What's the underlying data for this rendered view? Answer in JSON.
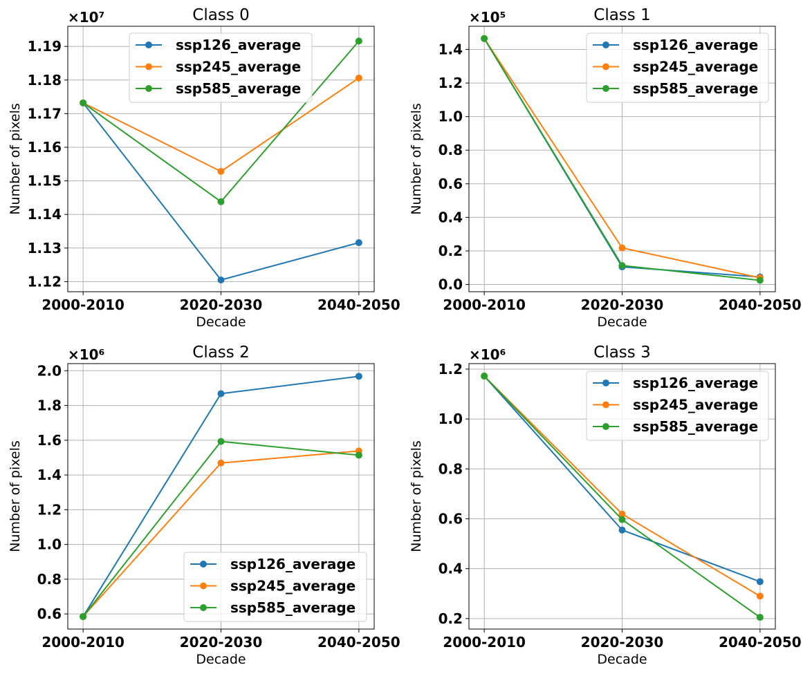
{
  "chart_data": [
    {
      "type": "line",
      "title": "Class 0",
      "xlabel": "Decade",
      "ylabel": "Number of pixels",
      "multiplier": "×10⁷",
      "categories": [
        "2000-2010",
        "2020-2030",
        "2040-2050"
      ],
      "ylim": [
        1.117,
        1.196
      ],
      "yticks": [
        1.12,
        1.13,
        1.14,
        1.15,
        1.16,
        1.17,
        1.18,
        1.19
      ],
      "ytick_labels": [
        "1.12",
        "1.13",
        "1.14",
        "1.15",
        "1.16",
        "1.17",
        "1.18",
        "1.19"
      ],
      "grid": true,
      "legend": "top-center",
      "series": [
        {
          "name": "ssp126_average",
          "color": "#1f77b4",
          "values": [
            1.1732,
            1.1205,
            1.1316
          ]
        },
        {
          "name": "ssp245_average",
          "color": "#ff7f0e",
          "values": [
            1.1732,
            1.1528,
            1.1806
          ]
        },
        {
          "name": "ssp585_average",
          "color": "#2ca02c",
          "values": [
            1.1732,
            1.1438,
            1.1916
          ]
        }
      ]
    },
    {
      "type": "line",
      "title": "Class 1",
      "xlabel": "Decade",
      "ylabel": "Number of pixels",
      "multiplier": "×10⁵",
      "categories": [
        "2000-2010",
        "2020-2030",
        "2040-2050"
      ],
      "ylim": [
        -0.043,
        1.538
      ],
      "yticks": [
        0.0,
        0.2,
        0.4,
        0.6,
        0.8,
        1.0,
        1.2,
        1.4
      ],
      "ytick_labels": [
        "0.0",
        "0.2",
        "0.4",
        "0.6",
        "0.8",
        "1.0",
        "1.2",
        "1.4"
      ],
      "grid": true,
      "legend": "top-right",
      "series": [
        {
          "name": "ssp126_average",
          "color": "#1f77b4",
          "values": [
            1.465,
            0.105,
            0.045
          ]
        },
        {
          "name": "ssp245_average",
          "color": "#ff7f0e",
          "values": [
            1.465,
            0.218,
            0.04
          ]
        },
        {
          "name": "ssp585_average",
          "color": "#2ca02c",
          "values": [
            1.465,
            0.113,
            0.025
          ]
        }
      ]
    },
    {
      "type": "line",
      "title": "Class 2",
      "xlabel": "Decade",
      "ylabel": "Number of pixels",
      "multiplier": "×10⁶",
      "categories": [
        "2000-2010",
        "2020-2030",
        "2040-2050"
      ],
      "ylim": [
        0.513,
        2.041
      ],
      "yticks": [
        0.6,
        0.8,
        1.0,
        1.2,
        1.4,
        1.6,
        1.8,
        2.0
      ],
      "ytick_labels": [
        "0.6",
        "0.8",
        "1.0",
        "1.2",
        "1.4",
        "1.6",
        "1.8",
        "2.0"
      ],
      "grid": true,
      "legend": "lower-right",
      "series": [
        {
          "name": "ssp126_average",
          "color": "#1f77b4",
          "values": [
            0.585,
            1.868,
            1.968
          ]
        },
        {
          "name": "ssp245_average",
          "color": "#ff7f0e",
          "values": [
            0.585,
            1.469,
            1.538
          ]
        },
        {
          "name": "ssp585_average",
          "color": "#2ca02c",
          "values": [
            0.585,
            1.593,
            1.514
          ]
        }
      ]
    },
    {
      "type": "line",
      "title": "Class 3",
      "xlabel": "Decade",
      "ylabel": "Number of pixels",
      "multiplier": "×10⁶",
      "categories": [
        "2000-2010",
        "2020-2030",
        "2040-2050"
      ],
      "ylim": [
        0.158,
        1.222
      ],
      "yticks": [
        0.2,
        0.4,
        0.6,
        0.8,
        1.0,
        1.2
      ],
      "ytick_labels": [
        "0.2",
        "0.4",
        "0.6",
        "0.8",
        "1.0",
        "1.2"
      ],
      "grid": true,
      "legend": "top-right",
      "series": [
        {
          "name": "ssp126_average",
          "color": "#1f77b4",
          "values": [
            1.172,
            0.555,
            0.348
          ]
        },
        {
          "name": "ssp245_average",
          "color": "#ff7f0e",
          "values": [
            1.172,
            0.619,
            0.29
          ]
        },
        {
          "name": "ssp585_average",
          "color": "#2ca02c",
          "values": [
            1.172,
            0.597,
            0.205
          ]
        }
      ]
    }
  ]
}
